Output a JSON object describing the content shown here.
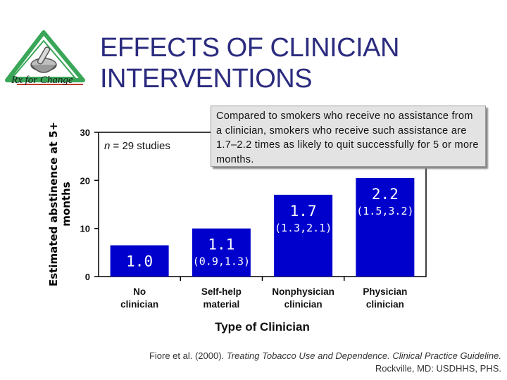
{
  "slide": {
    "title_line1": "EFFECTS OF CLINICIAN",
    "title_line2": "INTERVENTIONS",
    "logo_text": "Rx for Change",
    "callout": "Compared to smokers who receive no assistance from a clinician, smokers who receive such assistance are 1.7–2.2 times as likely to quit successfully for 5 or more months.",
    "footnote": {
      "authors": "Fiore et al. (2000). ",
      "book": "Treating Tobacco Use and Dependence. Clinical Practice Guideline.",
      "publisher": "Rockville, MD: USDHHS, PHS."
    }
  },
  "colors": {
    "title": "#2b2b7f",
    "bar": "#0000cc",
    "box": "#ffffff",
    "value_text": "#ffffff",
    "logo_green": "#3aa658",
    "logo_red": "#c0392b"
  },
  "chart_data": {
    "type": "bar",
    "title": "",
    "xlabel": "Type of Clinician",
    "ylabel": "Estimated abstinence at 5+ months",
    "ylim": [
      0,
      30
    ],
    "yticks": [
      0,
      10,
      20,
      30
    ],
    "categories": [
      "No clinician",
      "Self-help material",
      "Nonphysician clinician",
      "Physician clinician"
    ],
    "values": [
      1.0,
      1.1,
      1.7,
      2.2
    ],
    "value_labels": [
      "1.0",
      "1.1",
      "1.7",
      "2.2"
    ],
    "ci_labels": [
      "",
      "(0.9,1.3)",
      "(1.3,2.1)",
      "(1.5,3.2)"
    ],
    "annotation": "n = 29 studies",
    "plotted_heights": [
      6.5,
      10,
      17,
      20.5
    ]
  }
}
